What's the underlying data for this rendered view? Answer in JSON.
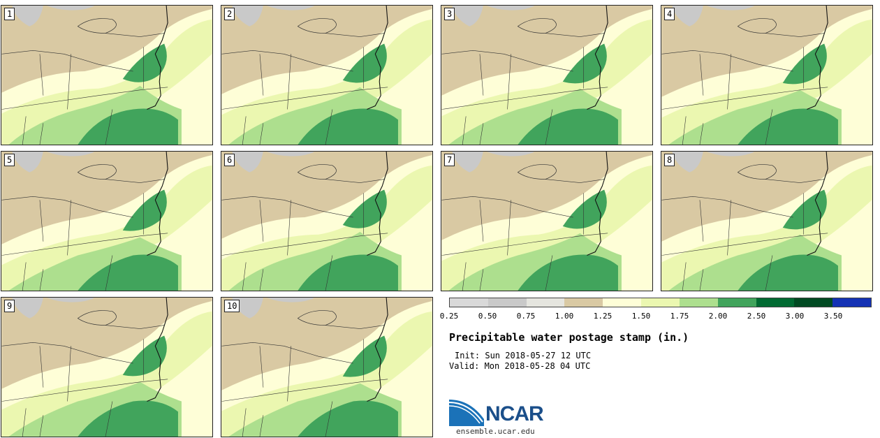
{
  "panels": [
    {
      "label": "1"
    },
    {
      "label": "2"
    },
    {
      "label": "3"
    },
    {
      "label": "4"
    },
    {
      "label": "5"
    },
    {
      "label": "6"
    },
    {
      "label": "7"
    },
    {
      "label": "8"
    },
    {
      "label": "9"
    },
    {
      "label": "10"
    }
  ],
  "colorbar": {
    "colors": [
      "#d9d9d9",
      "#c9c9c9",
      "#e5e5df",
      "#d9c9a3",
      "#fefed7",
      "#ebf7b0",
      "#addf8e",
      "#41a45c",
      "#006a32",
      "#004a22",
      "#1432b4"
    ],
    "ticks": [
      "0.25",
      "0.50",
      "0.75",
      "1.00",
      "1.25",
      "1.50",
      "1.75",
      "2.00",
      "2.50",
      "3.00",
      "3.50"
    ]
  },
  "title": "Precipitable water postage stamp (in.)",
  "init_line": "Init: Sun 2018-05-27 12 UTC",
  "valid_line": "Valid: Mon 2018-05-28 04 UTC",
  "logo": {
    "text": "NCAR",
    "url": "ensemble.ucar.edu"
  }
}
